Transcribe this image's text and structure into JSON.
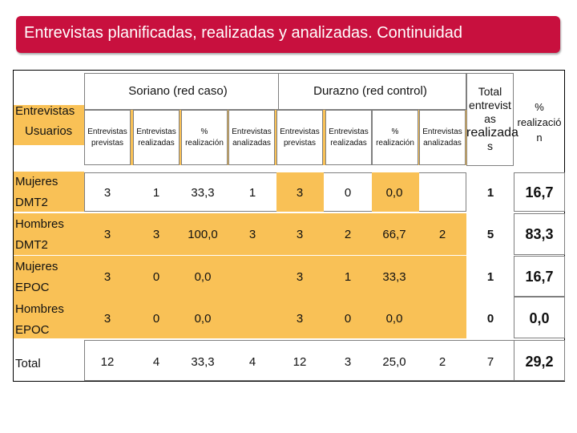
{
  "title": "Entrevistas planificadas, realizadas y analizadas. Continuidad",
  "colors": {
    "banner": "#c8103e",
    "highlight": "#f9c156"
  },
  "table": {
    "corner": {
      "line1": "Entrevistas",
      "line2": "Usuarios"
    },
    "group_soriano": "Soriano (red caso)",
    "group_durazno": "Durazno (red control)",
    "total_header": [
      "Total",
      "entrevist",
      "as",
      "realizada",
      "s"
    ],
    "pct_header": [
      "%",
      "realizació",
      "n"
    ],
    "columns": [
      [
        "Entrevistas",
        "previstas"
      ],
      [
        "Entrevistas",
        "realizadas"
      ],
      [
        "%",
        "realización"
      ],
      [
        "Entrevistas",
        "analizadas"
      ],
      [
        "Entrevistas",
        "previstas"
      ],
      [
        "Entrevistas",
        "realizadas"
      ],
      [
        "%",
        "realización"
      ],
      [
        "Entrevistas",
        "analizadas"
      ]
    ],
    "rows": [
      {
        "label": [
          "Mujeres",
          "DMT2"
        ],
        "cells": [
          "3",
          "1",
          "33,3",
          "1",
          "3",
          "0",
          "0,0",
          "",
          "1",
          "16,7"
        ]
      },
      {
        "label": [
          "Hombres",
          "DMT2"
        ],
        "cells": [
          "3",
          "3",
          "100,0",
          "3",
          "3",
          "2",
          "66,7",
          "2",
          "5",
          "83,3"
        ]
      },
      {
        "label": [
          "Mujeres",
          "EPOC"
        ],
        "cells": [
          "3",
          "0",
          "0,0",
          "",
          "3",
          "1",
          "33,3",
          "",
          "1",
          "16,7"
        ]
      },
      {
        "label": [
          "Hombres",
          "EPOC"
        ],
        "cells": [
          "3",
          "0",
          "0,0",
          "",
          "3",
          "0",
          "0,0",
          "",
          "0",
          "0,0"
        ]
      },
      {
        "label": [
          "Total"
        ],
        "cells": [
          "12",
          "4",
          "33,3",
          "4",
          "12",
          "3",
          "25,0",
          "2",
          "7",
          "29,2"
        ]
      }
    ]
  }
}
